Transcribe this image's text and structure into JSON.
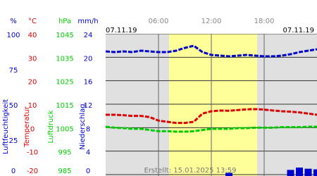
{
  "chart_data": {
    "type": "line",
    "date_left": "07.11.19",
    "date_right": "07.11.19",
    "footer": "Erstellt: 15.01.2025 13:59",
    "x": [
      0,
      1,
      2,
      3,
      4,
      5,
      6,
      7,
      8,
      9,
      10,
      11,
      12,
      13,
      14,
      15,
      16,
      17,
      18,
      19,
      20,
      21,
      22,
      23,
      24
    ],
    "xlim": [
      0,
      24
    ],
    "xticks": [
      {
        "value": 6,
        "label": "06:00"
      },
      {
        "value": 12,
        "label": "12:00"
      },
      {
        "value": 18,
        "label": "18:00"
      }
    ],
    "daylight": [
      7.2,
      17.2
    ],
    "daylight_color": "#ffff99",
    "background": "#e0e0e0",
    "grid": true,
    "axes": [
      {
        "unit": "%",
        "label": "Luftfeuchtigkeit",
        "color": "#0000cc",
        "style": "line",
        "ylim": [
          0,
          100
        ],
        "yticks": [
          0,
          25,
          50,
          75,
          100
        ],
        "values": [
          87.5,
          87,
          87.5,
          87,
          88,
          87.5,
          87,
          87,
          88,
          90,
          91.5,
          87,
          85,
          84.5,
          84,
          84.5,
          85,
          84.5,
          84,
          84,
          84.5,
          85.5,
          87,
          88,
          89
        ]
      },
      {
        "unit": "°C",
        "label": "Temperatur",
        "color": "#dd0000",
        "style": "line",
        "ylim": [
          -20,
          40
        ],
        "yticks": [
          -20,
          -10,
          0,
          10,
          20,
          30,
          40
        ],
        "values": [
          5.5,
          5.5,
          5.3,
          5,
          5,
          4.5,
          3,
          2.5,
          2,
          2,
          2.5,
          6,
          7,
          7.3,
          7.2,
          7.5,
          7.8,
          7.9,
          7.7,
          7.3,
          7,
          6.8,
          6.5,
          6,
          5.5
        ]
      },
      {
        "unit": "hPa",
        "label": "Luftdruck",
        "color": "#00cc00",
        "style": "line",
        "ylim": [
          985,
          1045
        ],
        "yticks": [
          985,
          995,
          1005,
          1015,
          1025,
          1035,
          1045
        ],
        "values": [
          1005.4,
          1005,
          1004.8,
          1004.5,
          1004.5,
          1004,
          1003.5,
          1003.5,
          1003.3,
          1003.3,
          1003.5,
          1004,
          1004.5,
          1004.5,
          1004.5,
          1004.8,
          1004.8,
          1005,
          1005,
          1005,
          1005.2,
          1005.2,
          1005.2,
          1005.4,
          1005.4
        ]
      },
      {
        "unit": "mm/h",
        "label": "Niederschlag",
        "color": "#0000cc",
        "style": "bar",
        "ylim": [
          0,
          24
        ],
        "yticks": [
          0,
          4,
          8,
          12,
          16,
          20,
          24
        ],
        "values": [
          0,
          0,
          0,
          0,
          0,
          0,
          0,
          0,
          0,
          0,
          0,
          0,
          0,
          0,
          0.3,
          0,
          0,
          0,
          0,
          0,
          0,
          0.8,
          1.2,
          1.0,
          0.9
        ]
      }
    ]
  }
}
